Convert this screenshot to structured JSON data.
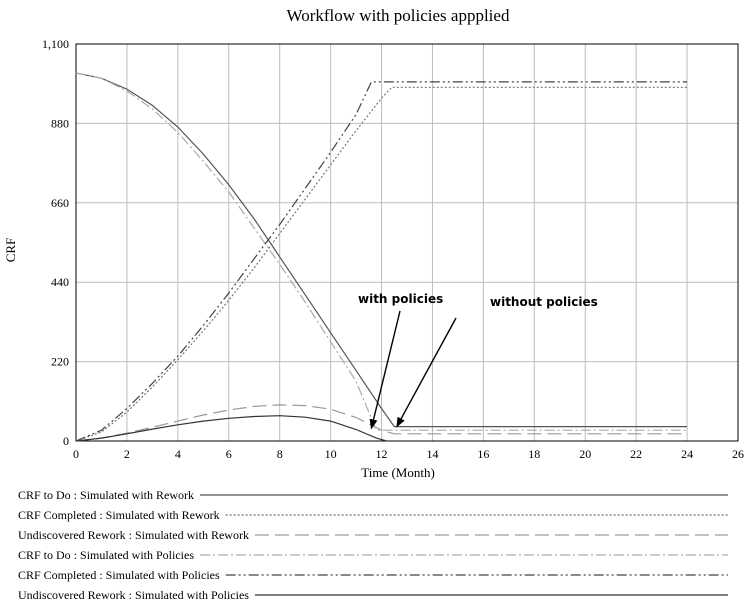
{
  "chart_data": {
    "type": "line",
    "title": "Workflow with policies appplied",
    "xlabel": "Time (Month)",
    "ylabel": "CRF",
    "xlim": [
      0,
      26
    ],
    "ylim": [
      0,
      1100
    ],
    "xticks": [
      0,
      2,
      4,
      6,
      8,
      10,
      12,
      14,
      16,
      18,
      20,
      22,
      24,
      26
    ],
    "yticks": [
      0,
      220,
      440,
      660,
      880,
      1100
    ],
    "ytick_labels": [
      "0",
      "220",
      "440",
      "660",
      "880",
      "1,100"
    ],
    "grid": true,
    "legend_position": "bottom",
    "annotations": [
      {
        "text": "with policies",
        "x": 11.6,
        "y": 35
      },
      {
        "text": "without policies",
        "x": 12.6,
        "y": 40
      }
    ],
    "series": [
      {
        "name": "CRF to Do : Simulated with Rework",
        "style": "solid",
        "x": [
          0,
          1,
          2,
          3,
          4,
          5,
          6,
          7,
          8,
          9,
          10,
          11,
          12,
          12.5,
          24
        ],
        "y": [
          1020,
          1005,
          975,
          930,
          870,
          795,
          710,
          615,
          510,
          405,
          300,
          195,
          90,
          40,
          40
        ]
      },
      {
        "name": "CRF Completed : Simulated with Rework",
        "style": "dotted",
        "x": [
          0,
          1,
          2,
          3,
          4,
          5,
          6,
          7,
          8,
          9,
          10,
          11,
          12,
          12.4,
          24
        ],
        "y": [
          0,
          25,
          80,
          150,
          225,
          305,
          390,
          480,
          575,
          670,
          765,
          860,
          950,
          980,
          980
        ]
      },
      {
        "name": "Undiscovered Rework : Simulated with Rework",
        "style": "longdash",
        "x": [
          0,
          1,
          2,
          3,
          4,
          5,
          6,
          7,
          8,
          9,
          10,
          11,
          12,
          12.5,
          24
        ],
        "y": [
          0,
          8,
          22,
          38,
          55,
          72,
          86,
          96,
          100,
          98,
          88,
          65,
          30,
          20,
          20
        ]
      },
      {
        "name": "CRF to Do : Simulated with Policies",
        "style": "dashdot",
        "x": [
          0,
          1,
          2,
          3,
          4,
          5,
          6,
          7,
          8,
          9,
          10,
          11,
          11.8,
          24
        ],
        "y": [
          1020,
          1005,
          970,
          920,
          855,
          775,
          690,
          590,
          490,
          385,
          275,
          165,
          30,
          30
        ]
      },
      {
        "name": "CRF Completed : Simulated with Policies",
        "style": "dashdotdot",
        "x": [
          0,
          1,
          2,
          3,
          4,
          5,
          6,
          7,
          8,
          9,
          10,
          11,
          11.6,
          24
        ],
        "y": [
          0,
          30,
          90,
          160,
          235,
          320,
          410,
          505,
          600,
          700,
          800,
          905,
          995,
          995
        ]
      },
      {
        "name": "Undiscovered Rework : Simulated with Policies",
        "style": "solid",
        "x": [
          0,
          1,
          2,
          3,
          4,
          5,
          6,
          7,
          8,
          9,
          10,
          11,
          11.8,
          12.2
        ],
        "y": [
          0,
          8,
          20,
          33,
          45,
          55,
          63,
          68,
          70,
          66,
          55,
          32,
          8,
          0
        ]
      }
    ]
  }
}
